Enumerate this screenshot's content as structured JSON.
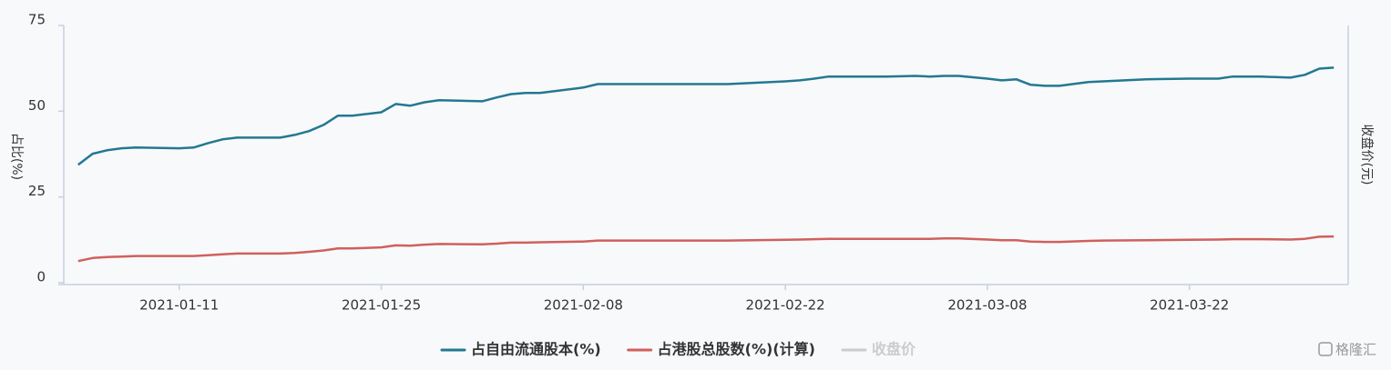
{
  "chart_data": {
    "type": "line",
    "y_label": "占比(%)",
    "y2_label": "收盘价(元)",
    "x": [
      "2021-01-04",
      "2021-01-05",
      "2021-01-06",
      "2021-01-07",
      "2021-01-08",
      "2021-01-11",
      "2021-01-12",
      "2021-01-13",
      "2021-01-14",
      "2021-01-15",
      "2021-01-18",
      "2021-01-19",
      "2021-01-20",
      "2021-01-21",
      "2021-01-22",
      "2021-01-23",
      "2021-01-25",
      "2021-01-26",
      "2021-01-27",
      "2021-01-28",
      "2021-01-29",
      "2021-02-01",
      "2021-02-02",
      "2021-02-03",
      "2021-02-04",
      "2021-02-05",
      "2021-02-08",
      "2021-02-09",
      "2021-02-10",
      "2021-02-18",
      "2021-02-22",
      "2021-02-23",
      "2021-02-24",
      "2021-02-25",
      "2021-03-01",
      "2021-03-03",
      "2021-03-04",
      "2021-03-05",
      "2021-03-06",
      "2021-03-08",
      "2021-03-09",
      "2021-03-10",
      "2021-03-11",
      "2021-03-12",
      "2021-03-13",
      "2021-03-15",
      "2021-03-16",
      "2021-03-19",
      "2021-03-22",
      "2021-03-24",
      "2021-03-25",
      "2021-03-27",
      "2021-03-29",
      "2021-03-30",
      "2021-03-31",
      "2021-04-01"
    ],
    "series": [
      {
        "name": "占自由流通股本(%)",
        "color": "#237891",
        "visible": true,
        "values": [
          34.4,
          37.6,
          38.6,
          39.2,
          39.4,
          39.2,
          39.4,
          40.7,
          41.8,
          42.3,
          42.3,
          43.1,
          44.2,
          46.0,
          48.7,
          48.7,
          49.7,
          52.1,
          51.6,
          52.6,
          53.2,
          52.9,
          54.0,
          55.0,
          55.3,
          55.3,
          56.9,
          57.9,
          57.9,
          57.9,
          58.7,
          59.0,
          59.5,
          60.1,
          60.1,
          60.3,
          60.1,
          60.3,
          60.3,
          59.5,
          59.0,
          59.3,
          57.7,
          57.4,
          57.4,
          58.5,
          58.7,
          59.3,
          59.5,
          59.5,
          60.1,
          60.1,
          59.8,
          60.6,
          62.4,
          62.7
        ]
      },
      {
        "name": "占港股总股数(%)(计算)",
        "color": "#d0605c",
        "visible": true,
        "values": [
          6.3,
          7.2,
          7.5,
          7.6,
          7.8,
          7.8,
          7.8,
          8.0,
          8.3,
          8.5,
          8.5,
          8.7,
          9.0,
          9.4,
          10.0,
          10.0,
          10.3,
          10.9,
          10.8,
          11.1,
          11.3,
          11.2,
          11.4,
          11.7,
          11.7,
          11.8,
          12.0,
          12.3,
          12.3,
          12.3,
          12.5,
          12.6,
          12.7,
          12.8,
          12.8,
          12.8,
          12.8,
          12.9,
          12.9,
          12.6,
          12.4,
          12.4,
          12.0,
          11.9,
          11.9,
          12.2,
          12.3,
          12.4,
          12.5,
          12.6,
          12.7,
          12.7,
          12.6,
          12.8,
          13.4,
          13.5
        ]
      },
      {
        "name": "收盘价",
        "color": "#cccccc",
        "visible": false,
        "axis": "y2",
        "values": [
          null,
          null,
          null,
          null,
          null,
          null,
          null,
          null,
          null,
          null,
          null,
          null,
          null,
          null,
          null,
          null,
          null,
          null,
          null,
          null,
          null,
          null,
          null,
          null,
          null,
          null,
          null,
          null,
          null,
          null,
          null,
          null,
          null,
          null,
          null,
          null,
          null,
          null,
          null,
          null,
          null,
          null,
          null,
          null,
          null,
          null,
          null,
          null,
          null,
          null,
          null,
          null,
          null,
          null,
          null,
          null
        ]
      }
    ],
    "xlim": [
      "2021-01-03",
      "2021-04-02"
    ],
    "xticks": [
      "2021-01-11",
      "2021-01-25",
      "2021-02-08",
      "2021-02-22",
      "2021-03-08",
      "2021-03-22"
    ],
    "ylim": [
      0,
      75
    ],
    "yticks": [
      0,
      25,
      50,
      75
    ],
    "legend": "bottom",
    "watermark": "格隆汇"
  }
}
